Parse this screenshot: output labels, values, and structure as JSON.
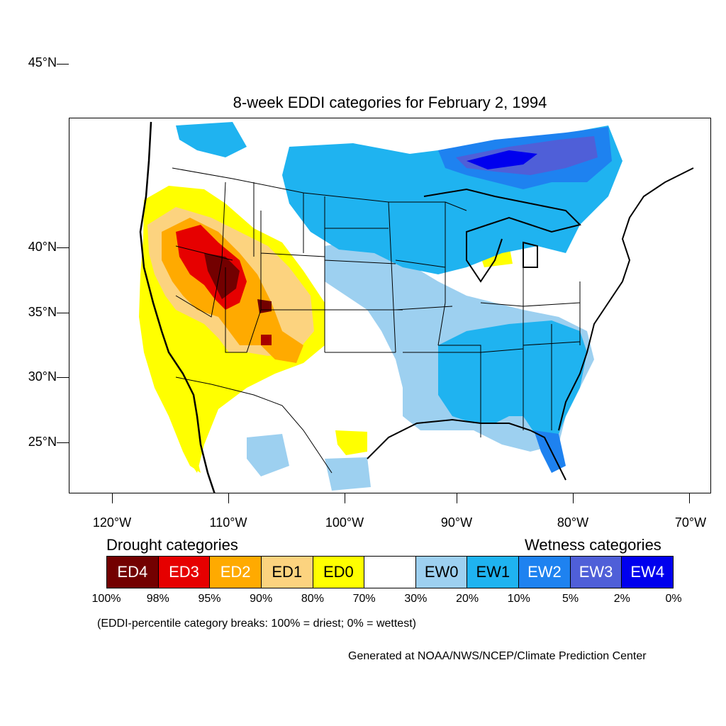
{
  "title": "8-week EDDI categories for February 2, 1994",
  "axes": {
    "y_labels": [
      "45°N",
      "40°N",
      "35°N",
      "30°N",
      "25°N"
    ],
    "x_labels": [
      "120°W",
      "110°W",
      "100°W",
      "90°W",
      "80°W",
      "70°W"
    ]
  },
  "legend": {
    "drought_heading": "Drought categories",
    "wetness_heading": "Wetness categories",
    "categories": [
      {
        "label": "ED4",
        "color": "#730000",
        "text_color": "#ffffff"
      },
      {
        "label": "ED3",
        "color": "#e60000",
        "text_color": "#ffffff"
      },
      {
        "label": "ED2",
        "color": "#ffaa00",
        "text_color": "#ffffff"
      },
      {
        "label": "ED1",
        "color": "#fcd37f",
        "text_color": "#000000"
      },
      {
        "label": "ED0",
        "color": "#ffff00",
        "text_color": "#000000"
      },
      {
        "label": "",
        "color": "#ffffff",
        "text_color": "#000000"
      },
      {
        "label": "EW0",
        "color": "#9dd0f0",
        "text_color": "#000000"
      },
      {
        "label": "EW1",
        "color": "#1fb3f0",
        "text_color": "#000000"
      },
      {
        "label": "EW2",
        "color": "#1e82f0",
        "text_color": "#ffffff"
      },
      {
        "label": "EW3",
        "color": "#4f5fd8",
        "text_color": "#ffffff"
      },
      {
        "label": "EW4",
        "color": "#0000ee",
        "text_color": "#ffffff"
      }
    ],
    "percentiles": [
      "100%",
      "98%",
      "95%",
      "90%",
      "80%",
      "70%",
      "30%",
      "20%",
      "10%",
      "5%",
      "2%",
      "0%"
    ]
  },
  "note": "(EDDI-percentile category breaks: 100% = driest; 0% = wettest)",
  "credit": "Generated at NOAA/NWS/NCEP/Climate Prediction Center"
}
